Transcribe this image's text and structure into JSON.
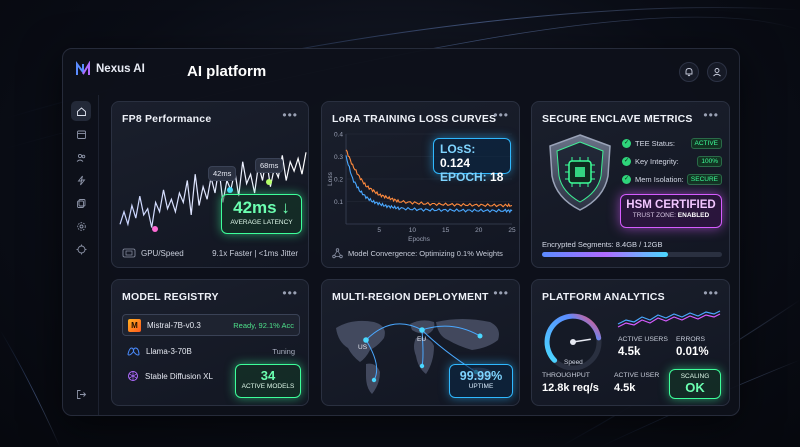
{
  "app": {
    "name": "Nexus AI",
    "page_title": "AI platform"
  },
  "icons": {
    "logo": "nexus-logo-icon",
    "topbar": [
      "bell-icon",
      "user-icon"
    ],
    "sidebar": [
      "home-icon",
      "calendar-icon",
      "users-icon",
      "lightning-icon",
      "copy-icon",
      "settings-icon",
      "target-icon"
    ],
    "sidebar_bottom": "logout-icon"
  },
  "menu_glyph": "•••",
  "fp8": {
    "title": "FP8 Performance",
    "callout_a": "42ms",
    "callout_b": "68ms",
    "latency_value": "42ms ↓",
    "latency_label": "AVERAGE LATENCY",
    "footer_left": "GPU/Speed",
    "footer_right": "9.1x Faster | <1ms Jitter",
    "line_values": [
      30,
      38,
      30,
      42,
      34,
      48,
      36,
      40,
      28,
      44,
      38,
      52,
      40,
      46,
      38,
      50,
      44,
      58,
      36,
      62,
      42,
      54,
      46,
      60,
      50,
      66,
      44,
      58,
      52,
      64,
      48,
      70,
      56,
      62,
      50,
      68,
      58,
      72,
      54,
      66,
      60,
      74,
      58,
      70,
      64,
      72,
      62,
      76
    ]
  },
  "lora": {
    "title": "LoRA TRAINING LOSS CURVES",
    "loss_label": "LOsS:",
    "loss_value": "0.124",
    "epoch_label": "EPOCH:",
    "epoch_value": "18",
    "footer": "Model Convergence: Optimizing 0.1% Weights",
    "chart_data": {
      "type": "line",
      "xlabel": "Epochs",
      "ylabel": "Loss",
      "xlim": [
        0,
        25
      ],
      "ylim": [
        0,
        0.4
      ],
      "x_ticks": [
        "5",
        "10",
        "15",
        "20",
        "25"
      ],
      "y_ticks": [
        "0.4",
        "0.3",
        "0.2",
        "0.1"
      ],
      "series": [
        {
          "color": "#ff8a3d",
          "x": [
            0,
            1,
            2,
            3,
            4,
            5,
            6,
            7,
            8,
            10,
            12,
            14,
            16,
            18,
            20,
            22,
            24,
            25
          ],
          "y": [
            0.33,
            0.26,
            0.21,
            0.17,
            0.15,
            0.13,
            0.12,
            0.11,
            0.1,
            0.095,
            0.09,
            0.088,
            0.086,
            0.085,
            0.084,
            0.083,
            0.083,
            0.082
          ]
        },
        {
          "color": "#4aa8ff",
          "x": [
            0,
            1,
            2,
            3,
            4,
            5,
            6,
            7,
            8,
            10,
            12,
            14,
            16,
            18,
            20,
            22,
            24,
            25
          ],
          "y": [
            0.3,
            0.2,
            0.15,
            0.12,
            0.1,
            0.09,
            0.08,
            0.075,
            0.07,
            0.066,
            0.063,
            0.062,
            0.061,
            0.06,
            0.06,
            0.059,
            0.059,
            0.058
          ]
        }
      ]
    }
  },
  "enclave": {
    "title": "SECURE ENCLAVE METRICS",
    "checks": [
      {
        "label": "TEE Status:",
        "value": "ACTIVE"
      },
      {
        "label": "Key Integrity:",
        "value": "100%"
      },
      {
        "label": "Mem Isolation:",
        "value": "SECURE"
      }
    ],
    "hsm_title": "HSM CERTIFIED",
    "hsm_sub_label": "TRUST ZONE:",
    "hsm_sub_value": "ENABLED",
    "segments_label": "Encrypted Segments: 8.4GB / 12GB",
    "segments_fraction": 0.7
  },
  "registry": {
    "title": "MODEL REGISTRY",
    "models": [
      {
        "name": "Mistral-7B-v0.3",
        "status": "Ready, 92.1% Acc"
      },
      {
        "name": "Llama-3-70B",
        "status": "Tuning"
      },
      {
        "name": "Stable Diffusion XL",
        "status": ""
      }
    ],
    "active_count": "34",
    "active_label": "ACTIVE MODELS"
  },
  "deploy": {
    "title": "MULTI-REGION DEPLOYMENT",
    "regions": [
      "US",
      "EU"
    ],
    "uptime_value": "99.99%",
    "uptime_label": "UPTIME"
  },
  "analytics": {
    "title": "PLATFORM ANALYTICS",
    "gauge_label": "Speed",
    "gauge_fraction": 0.8,
    "active_users_label": "ACTIVE USERS",
    "active_users_value": "4.5k",
    "errors_label": "ERRORS",
    "errors_value": "0.01%",
    "throughput_label": "THROUGHPUT",
    "throughput_value": "12.8k req/s",
    "active_user_label": "ACTIVE USER",
    "active_user_value": "4.5k",
    "scaling_label": "SCALING",
    "scaling_value": "OK"
  }
}
